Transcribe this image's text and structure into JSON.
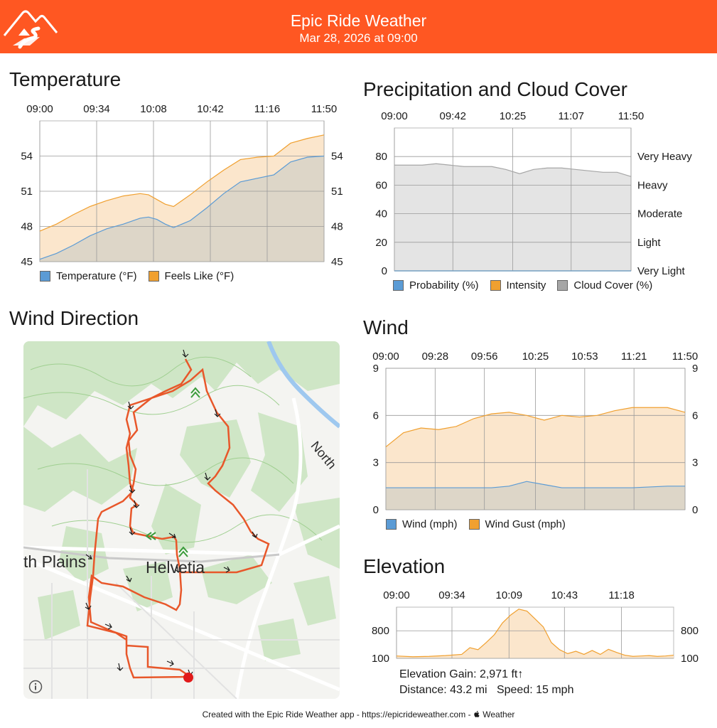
{
  "header": {
    "title": "Epic Ride Weather",
    "subtitle": "Mar 28, 2026 at 09:00",
    "brand_color": "#ff5722"
  },
  "sections": {
    "temperature": "Temperature",
    "precipitation": "Precipitation and Cloud Cover",
    "wind_direction": "Wind Direction",
    "wind": "Wind",
    "elevation": "Elevation"
  },
  "chart_data": [
    {
      "id": "temperature",
      "type": "area",
      "x_ticks": [
        "09:00",
        "09:34",
        "10:08",
        "10:42",
        "11:16",
        "11:50"
      ],
      "x_start": "09:00",
      "x_end": "11:50",
      "ylim": [
        45,
        57
      ],
      "y_ticks": [
        45,
        48,
        51,
        54
      ],
      "grid": true,
      "legend": "bottom",
      "series": [
        {
          "name": "Temperature (°F)",
          "color": "#5b9bd5",
          "fill": "#ddd6c8",
          "x": [
            "09:00",
            "09:10",
            "09:20",
            "09:30",
            "09:40",
            "09:50",
            "10:00",
            "10:05",
            "10:10",
            "10:15",
            "10:20",
            "10:30",
            "10:40",
            "10:50",
            "11:00",
            "11:10",
            "11:20",
            "11:30",
            "11:40",
            "11:50"
          ],
          "values": [
            45.2,
            45.7,
            46.4,
            47.2,
            47.8,
            48.2,
            48.7,
            48.8,
            48.6,
            48.2,
            47.9,
            48.5,
            49.6,
            50.8,
            51.8,
            52.1,
            52.4,
            53.5,
            53.9,
            54.0
          ]
        },
        {
          "name": "Feels Like (°F)",
          "color": "#f0a030",
          "fill": "#fbe6cc",
          "x": [
            "09:00",
            "09:10",
            "09:20",
            "09:30",
            "09:40",
            "09:50",
            "10:00",
            "10:05",
            "10:10",
            "10:15",
            "10:20",
            "10:30",
            "10:40",
            "10:50",
            "11:00",
            "11:10",
            "11:20",
            "11:30",
            "11:40",
            "11:50"
          ],
          "values": [
            47.6,
            48.2,
            49.0,
            49.7,
            50.2,
            50.6,
            50.8,
            50.7,
            50.3,
            49.9,
            49.7,
            50.7,
            51.8,
            52.8,
            53.7,
            53.9,
            54.0,
            55.1,
            55.5,
            55.8
          ]
        }
      ]
    },
    {
      "id": "precipitation",
      "type": "area",
      "x_ticks": [
        "09:00",
        "09:42",
        "10:25",
        "11:07",
        "11:50"
      ],
      "x_start": "09:00",
      "x_end": "11:50",
      "ylim": [
        0,
        100
      ],
      "y_ticks": [
        0,
        20,
        40,
        60,
        80
      ],
      "y2_ticks": [
        "Very Light",
        "Light",
        "Moderate",
        "Heavy",
        "Very Heavy"
      ],
      "grid": true,
      "legend": "bottom",
      "series": [
        {
          "name": "Probability (%)",
          "color": "#5b9bd5",
          "x": [
            "09:00",
            "11:50"
          ],
          "values": [
            0,
            0
          ]
        },
        {
          "name": "Intensity",
          "color": "#f0a030",
          "x": [
            "09:00",
            "11:50"
          ],
          "values": [
            0,
            0
          ]
        },
        {
          "name": "Cloud Cover (%)",
          "color": "#a6a6a6",
          "fill": "#e4e4e4",
          "x": [
            "09:00",
            "09:10",
            "09:20",
            "09:30",
            "09:40",
            "09:50",
            "10:00",
            "10:10",
            "10:20",
            "10:30",
            "10:40",
            "10:50",
            "11:00",
            "11:10",
            "11:20",
            "11:30",
            "11:40",
            "11:50"
          ],
          "values": [
            74,
            74,
            74,
            75,
            74,
            73,
            73,
            73,
            71,
            68,
            71,
            72,
            72,
            71,
            70,
            69,
            69,
            66
          ]
        }
      ]
    },
    {
      "id": "wind",
      "type": "area",
      "x_ticks": [
        "09:00",
        "09:28",
        "09:56",
        "10:25",
        "10:53",
        "11:21",
        "11:50"
      ],
      "x_start": "09:00",
      "x_end": "11:50",
      "ylim": [
        0,
        9
      ],
      "y_ticks": [
        0,
        3,
        6,
        9
      ],
      "grid": true,
      "legend": "bottom",
      "series": [
        {
          "name": "Wind (mph)",
          "color": "#5b9bd5",
          "fill": "#ddd6c8",
          "x": [
            "09:00",
            "09:20",
            "09:40",
            "10:00",
            "10:10",
            "10:20",
            "10:30",
            "10:40",
            "11:00",
            "11:20",
            "11:40",
            "11:50"
          ],
          "values": [
            1.4,
            1.4,
            1.4,
            1.4,
            1.5,
            1.8,
            1.6,
            1.4,
            1.4,
            1.4,
            1.5,
            1.5
          ]
        },
        {
          "name": "Wind Gust (mph)",
          "color": "#f0a030",
          "fill": "#fbe6cc",
          "x": [
            "09:00",
            "09:10",
            "09:20",
            "09:30",
            "09:40",
            "09:50",
            "10:00",
            "10:10",
            "10:20",
            "10:30",
            "10:40",
            "10:50",
            "11:00",
            "11:10",
            "11:20",
            "11:30",
            "11:40",
            "11:50"
          ],
          "values": [
            4.0,
            4.9,
            5.2,
            5.1,
            5.3,
            5.8,
            6.1,
            6.2,
            6.0,
            5.7,
            6.0,
            5.9,
            6.0,
            6.3,
            6.5,
            6.5,
            6.5,
            6.2
          ]
        }
      ]
    },
    {
      "id": "elevation",
      "type": "area",
      "x_ticks": [
        "09:00",
        "09:34",
        "10:09",
        "10:43",
        "11:18"
      ],
      "x_start": "09:00",
      "x_end": "11:50",
      "ylim": [
        100,
        1400
      ],
      "y_ticks": [
        100,
        800
      ],
      "grid": true,
      "series": [
        {
          "name": "Elevation",
          "color": "#f0a030",
          "fill": "#fbe6cc",
          "x": [
            "09:00",
            "09:10",
            "09:20",
            "09:30",
            "09:40",
            "09:45",
            "09:50",
            "09:55",
            "10:00",
            "10:05",
            "10:10",
            "10:15",
            "10:20",
            "10:25",
            "10:30",
            "10:35",
            "10:40",
            "10:45",
            "10:50",
            "10:55",
            "11:00",
            "11:05",
            "11:10",
            "11:15",
            "11:20",
            "11:25",
            "11:30",
            "11:35",
            "11:40",
            "11:45",
            "11:50"
          ],
          "values": [
            160,
            140,
            150,
            170,
            200,
            370,
            320,
            500,
            700,
            1000,
            1200,
            1350,
            1300,
            1100,
            900,
            500,
            320,
            220,
            280,
            200,
            300,
            200,
            330,
            250,
            180,
            150,
            160,
            170,
            150,
            160,
            180
          ]
        }
      ]
    }
  ],
  "precip_y2_labels": [
    "Very Heavy",
    "Heavy",
    "Moderate",
    "Light",
    "Very Light"
  ],
  "map": {
    "labels": {
      "north": "North",
      "north_plains": "th Plains",
      "helvetia": "Helvetia"
    },
    "route_color": "#e8572a",
    "end_marker_color": "#e11a1a",
    "info_icon": "info-icon"
  },
  "elevation_stats": {
    "gain": "Elevation Gain: 2,971 ft↑",
    "distance": "Distance: 43.2 mi",
    "speed": "Speed: 15 mph"
  },
  "footer": "Created with the Epic Ride Weather app - https://epicrideweather.com -  Weather",
  "footer_parts": {
    "prefix": "Created with the Epic Ride Weather app - https://epicrideweather.com - ",
    "apple_logo": "apple-logo-icon",
    "suffix": "Weather"
  }
}
